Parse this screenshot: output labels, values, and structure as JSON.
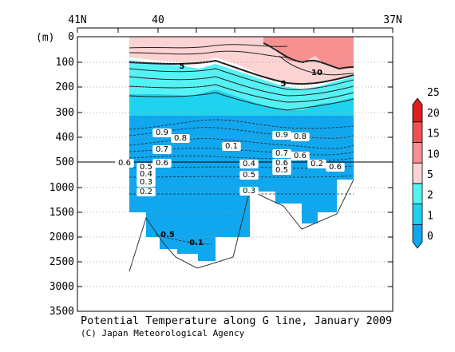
{
  "chart_data": {
    "type": "heatmap",
    "title": "Potential Temperature along G line, January 2009",
    "credit": "(C) Japan Meteorological Agency",
    "ylabel": "(m)",
    "y_ticks": [
      "0",
      "100",
      "200",
      "300",
      "400",
      "500",
      "1000",
      "1500",
      "2000",
      "2500",
      "3000",
      "3500"
    ],
    "y_scale": "piecewise: 0-500 m expanded, 500-3500 m compressed",
    "ylim": [
      0,
      3500
    ],
    "x_ticks": [
      "41N",
      "40",
      "37N"
    ],
    "xlim": [
      "41N",
      "37N"
    ],
    "colorbar": {
      "ticks": [
        "0",
        "1",
        "2",
        "5",
        "10",
        "15",
        "20",
        "25"
      ],
      "colors": [
        "#11a7ee",
        "#1ed2f0",
        "#55f2f4",
        "#fbd3d3",
        "#f79090",
        "#f25050",
        "#e21f1f"
      ]
    },
    "contour_labels": [
      "5",
      "10",
      "5",
      "0.9",
      "0.8",
      "0.7",
      "0.6",
      "0.6",
      "0.5",
      "0.4",
      "0.3",
      "0.2",
      "0.9",
      "0.8",
      "0.7",
      "0.6",
      "0.6",
      "0.5",
      "0.4",
      "0.5",
      "0.3",
      "0.2",
      "0.6",
      "0.5",
      "0.1",
      "0.1"
    ],
    "reference_line_depth_m": 500
  }
}
